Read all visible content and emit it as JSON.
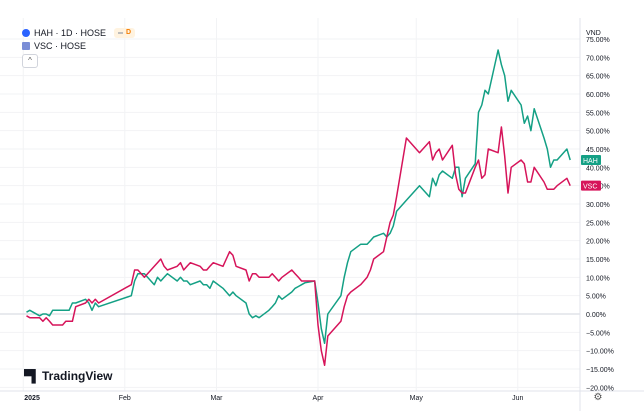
{
  "legend": {
    "series1": "HAH · 1D · HOSE",
    "series2": "VSC · HOSE",
    "badge": "D",
    "collapse": "^"
  },
  "logo": "TradingView",
  "settings_icon": "gear-icon",
  "colors": {
    "hah": "#14a085",
    "vsc": "#d6145a"
  },
  "chart_data": {
    "type": "line",
    "y_unit": "VND",
    "ylim": [
      -21,
      78
    ],
    "y_ticks": [
      75,
      70,
      65,
      60,
      55,
      50,
      45,
      40,
      35,
      30,
      25,
      20,
      15,
      10,
      5,
      0,
      -5,
      -10,
      -15,
      -20
    ],
    "y_tick_labels": [
      "75.00%",
      "70.00%",
      "65.00%",
      "60.00%",
      "55.00%",
      "50.00%",
      "45.00%",
      "40.00%",
      "35.00%",
      "30.00%",
      "25.00%",
      "20.00%",
      "15.00%",
      "10.00%",
      "5.00%",
      "0.00%",
      "−5.00%",
      "−10.00%",
      "−15.00%",
      "−20.00%"
    ],
    "x_ticks": [
      "2025-01-01",
      "2025-02-01",
      "2025-03-01",
      "2025-04-01",
      "2025-05-01",
      "2025-06-01"
    ],
    "x_tick_labels": [
      "2025",
      "Feb",
      "Mar",
      "Apr",
      "May",
      "Jun"
    ],
    "x_range": [
      "2024-12-31",
      "2025-06-20"
    ],
    "series": [
      {
        "name": "HAH",
        "color": "#14a085",
        "last_label": "HAH",
        "points": [
          [
            "2025-01-02",
            0.5
          ],
          [
            "2025-01-03",
            1
          ],
          [
            "2025-01-06",
            -0.5
          ],
          [
            "2025-01-07",
            0
          ],
          [
            "2025-01-08",
            0
          ],
          [
            "2025-01-09",
            -0.5
          ],
          [
            "2025-01-10",
            1
          ],
          [
            "2025-01-13",
            1
          ],
          [
            "2025-01-14",
            1
          ],
          [
            "2025-01-15",
            1
          ],
          [
            "2025-01-16",
            3
          ],
          [
            "2025-01-17",
            3
          ],
          [
            "2025-01-20",
            4
          ],
          [
            "2025-01-21",
            3
          ],
          [
            "2025-01-22",
            1
          ],
          [
            "2025-01-23",
            3
          ],
          [
            "2025-01-24",
            2
          ],
          [
            "2025-02-03",
            5
          ],
          [
            "2025-02-04",
            9
          ],
          [
            "2025-02-05",
            11
          ],
          [
            "2025-02-06",
            11
          ],
          [
            "2025-02-07",
            11
          ],
          [
            "2025-02-10",
            8
          ],
          [
            "2025-02-11",
            10
          ],
          [
            "2025-02-12",
            9
          ],
          [
            "2025-02-13",
            10
          ],
          [
            "2025-02-14",
            11
          ],
          [
            "2025-02-17",
            9
          ],
          [
            "2025-02-18",
            10
          ],
          [
            "2025-02-19",
            9
          ],
          [
            "2025-02-20",
            9
          ],
          [
            "2025-02-21",
            8
          ],
          [
            "2025-02-24",
            9
          ],
          [
            "2025-02-25",
            8
          ],
          [
            "2025-02-26",
            8
          ],
          [
            "2025-02-27",
            7
          ],
          [
            "2025-02-28",
            9
          ],
          [
            "2025-03-03",
            7
          ],
          [
            "2025-03-04",
            6
          ],
          [
            "2025-03-05",
            5
          ],
          [
            "2025-03-06",
            6
          ],
          [
            "2025-03-07",
            5
          ],
          [
            "2025-03-10",
            3
          ],
          [
            "2025-03-11",
            0
          ],
          [
            "2025-03-12",
            -1
          ],
          [
            "2025-03-13",
            -0.5
          ],
          [
            "2025-03-14",
            -1
          ],
          [
            "2025-03-17",
            1
          ],
          [
            "2025-03-18",
            2
          ],
          [
            "2025-03-19",
            3
          ],
          [
            "2025-03-20",
            5
          ],
          [
            "2025-03-21",
            4
          ],
          [
            "2025-03-24",
            6
          ],
          [
            "2025-03-25",
            7
          ],
          [
            "2025-03-26",
            7.5
          ],
          [
            "2025-03-27",
            8
          ],
          [
            "2025-03-28",
            8.5
          ],
          [
            "2025-03-31",
            9
          ],
          [
            "2025-04-01",
            3
          ],
          [
            "2025-04-02",
            -4
          ],
          [
            "2025-04-03",
            -8
          ],
          [
            "2025-04-04",
            0
          ],
          [
            "2025-04-08",
            5
          ],
          [
            "2025-04-09",
            10
          ],
          [
            "2025-04-10",
            14
          ],
          [
            "2025-04-11",
            17
          ],
          [
            "2025-04-14",
            19
          ],
          [
            "2025-04-15",
            19
          ],
          [
            "2025-04-16",
            19
          ],
          [
            "2025-04-17",
            20
          ],
          [
            "2025-04-18",
            21
          ],
          [
            "2025-04-21",
            22
          ],
          [
            "2025-04-22",
            21
          ],
          [
            "2025-04-23",
            22
          ],
          [
            "2025-04-24",
            24
          ],
          [
            "2025-04-25",
            28
          ],
          [
            "2025-04-28",
            31
          ],
          [
            "2025-05-02",
            35
          ],
          [
            "2025-05-05",
            32
          ],
          [
            "2025-05-06",
            37
          ],
          [
            "2025-05-07",
            35
          ],
          [
            "2025-05-08",
            38
          ],
          [
            "2025-05-09",
            39
          ],
          [
            "2025-05-12",
            37
          ],
          [
            "2025-05-13",
            40
          ],
          [
            "2025-05-14",
            40
          ],
          [
            "2025-05-15",
            32
          ],
          [
            "2025-05-16",
            37
          ],
          [
            "2025-05-19",
            41
          ],
          [
            "2025-05-20",
            55
          ],
          [
            "2025-05-21",
            57
          ],
          [
            "2025-05-22",
            61
          ],
          [
            "2025-05-23",
            60
          ],
          [
            "2025-05-26",
            72
          ],
          [
            "2025-05-27",
            68
          ],
          [
            "2025-05-28",
            65
          ],
          [
            "2025-05-29",
            58
          ],
          [
            "2025-05-30",
            61
          ],
          [
            "2025-06-02",
            57
          ],
          [
            "2025-06-03",
            52
          ],
          [
            "2025-06-04",
            54
          ],
          [
            "2025-06-05",
            50
          ],
          [
            "2025-06-06",
            56
          ],
          [
            "2025-06-09",
            48
          ],
          [
            "2025-06-10",
            45
          ],
          [
            "2025-06-11",
            40
          ],
          [
            "2025-06-12",
            42
          ],
          [
            "2025-06-13",
            42
          ],
          [
            "2025-06-16",
            45
          ],
          [
            "2025-06-17",
            42
          ]
        ]
      },
      {
        "name": "VSC",
        "color": "#d6145a",
        "last_label": "VSC",
        "points": [
          [
            "2025-01-02",
            -0.5
          ],
          [
            "2025-01-03",
            -1
          ],
          [
            "2025-01-06",
            -1
          ],
          [
            "2025-01-07",
            -2
          ],
          [
            "2025-01-08",
            -1
          ],
          [
            "2025-01-09",
            -2
          ],
          [
            "2025-01-10",
            -3
          ],
          [
            "2025-01-13",
            -3
          ],
          [
            "2025-01-14",
            -2
          ],
          [
            "2025-01-15",
            -2
          ],
          [
            "2025-01-16",
            -2
          ],
          [
            "2025-01-17",
            2
          ],
          [
            "2025-01-20",
            3
          ],
          [
            "2025-01-21",
            4
          ],
          [
            "2025-01-22",
            3
          ],
          [
            "2025-01-23",
            4
          ],
          [
            "2025-01-24",
            3
          ],
          [
            "2025-02-03",
            8
          ],
          [
            "2025-02-04",
            12
          ],
          [
            "2025-02-05",
            12
          ],
          [
            "2025-02-06",
            11
          ],
          [
            "2025-02-07",
            10
          ],
          [
            "2025-02-10",
            13
          ],
          [
            "2025-02-11",
            14
          ],
          [
            "2025-02-12",
            15
          ],
          [
            "2025-02-13",
            13
          ],
          [
            "2025-02-14",
            12
          ],
          [
            "2025-02-17",
            13
          ],
          [
            "2025-02-18",
            14
          ],
          [
            "2025-02-19",
            12
          ],
          [
            "2025-02-20",
            13
          ],
          [
            "2025-02-21",
            14
          ],
          [
            "2025-02-24",
            13
          ],
          [
            "2025-02-25",
            12
          ],
          [
            "2025-02-26",
            12
          ],
          [
            "2025-02-27",
            13
          ],
          [
            "2025-02-28",
            14
          ],
          [
            "2025-03-03",
            13
          ],
          [
            "2025-03-04",
            15
          ],
          [
            "2025-03-05",
            17
          ],
          [
            "2025-03-06",
            16
          ],
          [
            "2025-03-07",
            13
          ],
          [
            "2025-03-10",
            12
          ],
          [
            "2025-03-11",
            9
          ],
          [
            "2025-03-12",
            11
          ],
          [
            "2025-03-13",
            11
          ],
          [
            "2025-03-14",
            10
          ],
          [
            "2025-03-17",
            10
          ],
          [
            "2025-03-18",
            11
          ],
          [
            "2025-03-19",
            10
          ],
          [
            "2025-03-20",
            9
          ],
          [
            "2025-03-21",
            10
          ],
          [
            "2025-03-24",
            12
          ],
          [
            "2025-03-25",
            11
          ],
          [
            "2025-03-26",
            10
          ],
          [
            "2025-03-27",
            9
          ],
          [
            "2025-03-28",
            9
          ],
          [
            "2025-03-31",
            9
          ],
          [
            "2025-04-01",
            -3
          ],
          [
            "2025-04-02",
            -10
          ],
          [
            "2025-04-03",
            -14
          ],
          [
            "2025-04-04",
            -6
          ],
          [
            "2025-04-08",
            -2
          ],
          [
            "2025-04-09",
            2
          ],
          [
            "2025-04-10",
            5
          ],
          [
            "2025-04-11",
            6
          ],
          [
            "2025-04-14",
            8
          ],
          [
            "2025-04-15",
            9
          ],
          [
            "2025-04-16",
            10
          ],
          [
            "2025-04-17",
            12
          ],
          [
            "2025-04-18",
            15
          ],
          [
            "2025-04-21",
            17
          ],
          [
            "2025-04-22",
            21
          ],
          [
            "2025-04-23",
            25
          ],
          [
            "2025-04-24",
            27
          ],
          [
            "2025-04-25",
            32
          ],
          [
            "2025-04-28",
            48
          ],
          [
            "2025-05-02",
            44
          ],
          [
            "2025-05-05",
            47
          ],
          [
            "2025-05-06",
            42
          ],
          [
            "2025-05-07",
            44
          ],
          [
            "2025-05-08",
            45
          ],
          [
            "2025-05-09",
            42
          ],
          [
            "2025-05-12",
            46
          ],
          [
            "2025-05-13",
            38
          ],
          [
            "2025-05-14",
            34
          ],
          [
            "2025-05-15",
            33
          ],
          [
            "2025-05-16",
            33
          ],
          [
            "2025-05-19",
            40
          ],
          [
            "2025-05-20",
            42
          ],
          [
            "2025-05-21",
            37
          ],
          [
            "2025-05-22",
            38
          ],
          [
            "2025-05-23",
            45
          ],
          [
            "2025-05-26",
            44
          ],
          [
            "2025-05-27",
            51
          ],
          [
            "2025-05-28",
            43
          ],
          [
            "2025-05-29",
            33
          ],
          [
            "2025-05-30",
            40
          ],
          [
            "2025-06-02",
            42
          ],
          [
            "2025-06-03",
            41
          ],
          [
            "2025-06-04",
            36
          ],
          [
            "2025-06-05",
            36
          ],
          [
            "2025-06-06",
            40
          ],
          [
            "2025-06-09",
            36
          ],
          [
            "2025-06-10",
            34
          ],
          [
            "2025-06-11",
            34
          ],
          [
            "2025-06-12",
            34
          ],
          [
            "2025-06-13",
            35
          ],
          [
            "2025-06-16",
            37
          ],
          [
            "2025-06-17",
            35
          ]
        ]
      }
    ]
  }
}
